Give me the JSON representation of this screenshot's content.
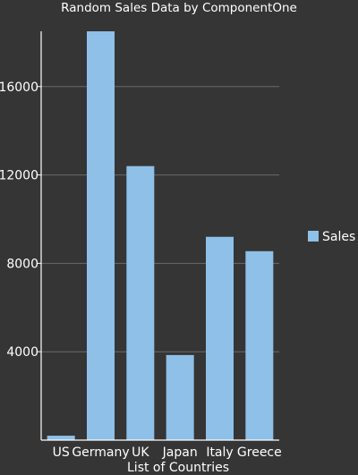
{
  "colors": {
    "background": "#353535",
    "bar": "#8ec0e8",
    "grid": "#6a6a6a",
    "axis": "#ffffff",
    "text": "#ffffff"
  },
  "chart_data": {
    "type": "bar",
    "title": "Random Sales Data by ComponentOne",
    "xlabel": "List of Countries",
    "ylabel": "",
    "categories": [
      "US",
      "Germany",
      "UK",
      "Japan",
      "Italy",
      "Greece"
    ],
    "series": [
      {
        "name": "Sales",
        "values": [
          200,
          18500,
          12400,
          3850,
          9200,
          8550
        ]
      }
    ],
    "ylim": [
      0,
      18500
    ],
    "yticks": [
      4000,
      8000,
      12000,
      16000
    ],
    "ytick_labels": [
      "4000",
      "8000",
      "12000",
      "16000"
    ],
    "grid": true,
    "legend_position": "right"
  }
}
